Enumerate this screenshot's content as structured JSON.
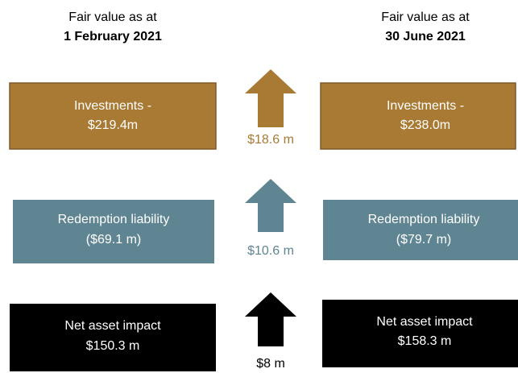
{
  "headers": {
    "left": {
      "line1": "Fair value as at",
      "line2": "1 February 2021"
    },
    "right": {
      "line1": "Fair value as at",
      "line2": "30 June 2021"
    }
  },
  "rows": [
    {
      "left": {
        "line1": "Investments -",
        "line2": "$219.4m"
      },
      "right": {
        "line1": "Investments -",
        "line2": "$238.0m"
      },
      "change": "$18.6 m"
    },
    {
      "left": {
        "line1": "Redemption liability",
        "line2": "($69.1 m)"
      },
      "right": {
        "line1": "Redemption liability",
        "line2": "($79.7 m)"
      },
      "change": "$10.6 m"
    },
    {
      "left": {
        "line1": "Net asset impact",
        "line2": "$150.3 m"
      },
      "right": {
        "line1": "Net asset impact",
        "line2": "$158.3 m"
      },
      "change": "$8 m"
    }
  ]
}
